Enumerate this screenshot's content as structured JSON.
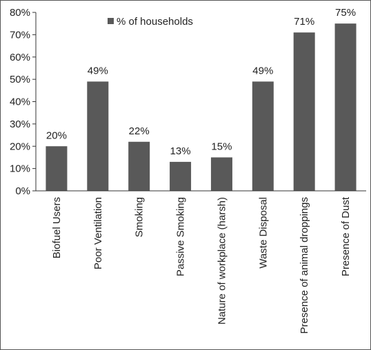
{
  "chart_data": {
    "type": "bar",
    "categories": [
      "Biofuel Users",
      "Poor Ventilation",
      "Smoking",
      "Passive Smoking",
      "Nature of workplace (harsh)",
      "Waste Disposal",
      "Presence of animal droppings",
      "Presence of Dust"
    ],
    "series": [
      {
        "name": "% of households",
        "values": [
          20,
          49,
          22,
          13,
          15,
          49,
          71,
          75
        ],
        "data_labels": [
          "20%",
          "49%",
          "22%",
          "13%",
          "15%",
          "49%",
          "71%",
          "75%"
        ],
        "color": "#595959"
      }
    ],
    "ylim": [
      0,
      80
    ],
    "yticks": [
      0,
      10,
      20,
      30,
      40,
      50,
      60,
      70,
      80
    ],
    "ytick_labels": [
      "0%",
      "10%",
      "20%",
      "30%",
      "40%",
      "50%",
      "60%",
      "70%",
      "80%"
    ],
    "grid": false,
    "legend_position": "top-left",
    "title": "",
    "xlabel": "",
    "ylabel": ""
  }
}
